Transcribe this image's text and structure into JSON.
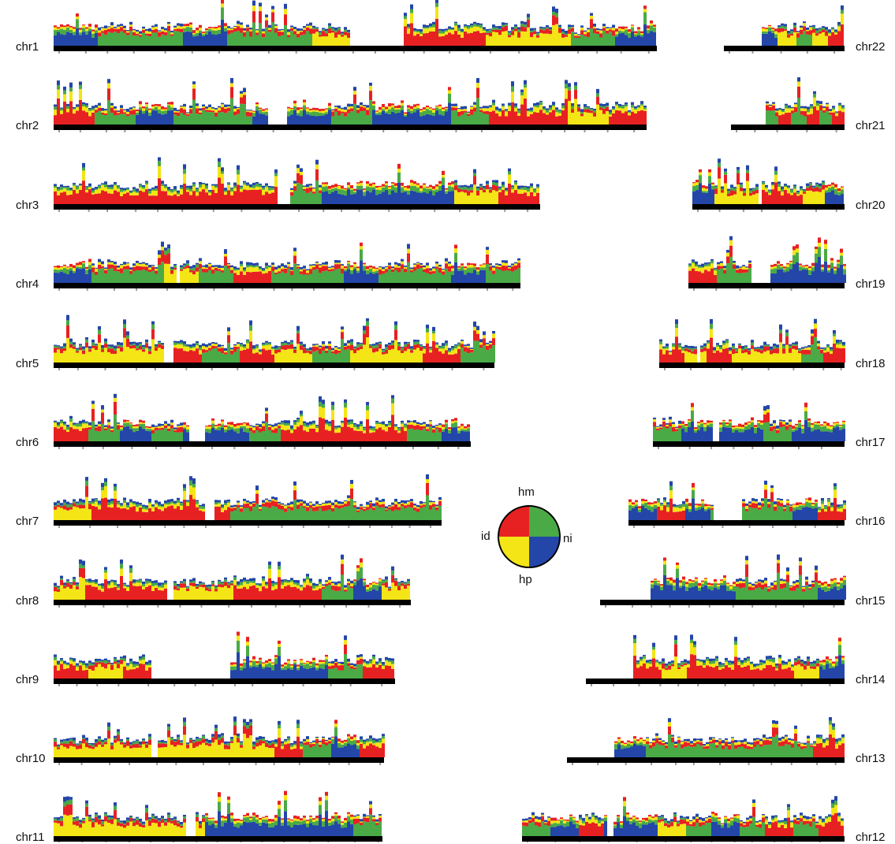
{
  "chromosomes_left": [
    {
      "label": "chr1",
      "centromere": [
        0.49,
        0.58
      ],
      "pattern": [
        "ni",
        "hm",
        "hm",
        "ni",
        "hm",
        "hm",
        "hp",
        "hm",
        "id",
        "id",
        "hp",
        "hp",
        "hm",
        "ni"
      ]
    },
    {
      "label": "chr2",
      "centromere": [
        0.36,
        0.39
      ],
      "pattern": [
        "id",
        "hm",
        "ni",
        "hm",
        "hm",
        "ni",
        "ni",
        "hm",
        "ni",
        "ni",
        "hm",
        "id",
        "id",
        "hp",
        "id"
      ]
    },
    {
      "label": "chr3",
      "centromere": [
        0.46,
        0.48
      ],
      "pattern": [
        "id",
        "id",
        "id",
        "id",
        "id",
        "hm",
        "ni",
        "ni",
        "ni",
        "hp",
        "id"
      ]
    },
    {
      "label": "chr4",
      "centromere": [
        0.26,
        0.27
      ],
      "pattern": [
        "ni",
        "hm",
        "hm",
        "hp",
        "hm",
        "id",
        "hm",
        "hm",
        "ni",
        "hm",
        "hm",
        "ni",
        "hm"
      ]
    },
    {
      "label": "chr5",
      "centromere": [
        0.25,
        0.27
      ],
      "pattern": [
        "hp",
        "hp",
        "hp",
        "id",
        "hm",
        "id",
        "hp",
        "hm",
        "hp",
        "hp",
        "id",
        "hm"
      ]
    },
    {
      "label": "chr6",
      "centromere": [
        0.32,
        0.36
      ],
      "pattern": [
        "id",
        "hm",
        "ni",
        "hm",
        "ni",
        "ni",
        "hm",
        "id",
        "id",
        "id",
        "id",
        "hm",
        "ni"
      ]
    },
    {
      "label": "chr7",
      "centromere": [
        0.39,
        0.41
      ],
      "pattern": [
        "hp",
        "id",
        "id",
        "id",
        "id",
        "hm",
        "hm",
        "hm",
        "hm",
        "hm",
        "hm"
      ]
    },
    {
      "label": "chr8",
      "centromere": [
        0.31,
        0.33
      ],
      "pattern": [
        "hp",
        "id",
        "id",
        "id",
        "hp",
        "hp",
        "id",
        "id",
        "id",
        "hm",
        "ni",
        "hp"
      ]
    },
    {
      "label": "chr9",
      "centromere": [
        0.28,
        0.51
      ],
      "pattern": [
        "id",
        "hp",
        "id",
        "hp",
        "ni",
        "ni",
        "ni",
        "ni",
        "hm",
        "id"
      ]
    },
    {
      "label": "chr10",
      "centromere": [
        0.29,
        0.31
      ],
      "pattern": [
        "hp",
        "hp",
        "hp",
        "hp",
        "hp",
        "hp",
        "hp",
        "hp",
        "id",
        "hm",
        "ni",
        "id"
      ]
    },
    {
      "label": "chr11",
      "centromere": [
        0.4,
        0.43
      ],
      "pattern": [
        "hp",
        "hp",
        "hp",
        "hp",
        "hp",
        "ni",
        "ni",
        "ni",
        "ni",
        "ni",
        "hm"
      ]
    }
  ],
  "chromosomes_right": [
    {
      "label": "chr22",
      "p_arm_empty_fraction": 0.3,
      "pattern": [
        "ni",
        "hp",
        "hm",
        "hp",
        "id"
      ]
    },
    {
      "label": "chr21",
      "p_arm_empty_fraction": 0.28,
      "pattern": [
        "hm",
        "id",
        "hm",
        "id",
        "hm",
        "id"
      ]
    },
    {
      "label": "chr20",
      "centromere": [
        0.42,
        0.45
      ],
      "pattern": [
        "ni",
        "hp",
        "hp",
        "id",
        "id",
        "hp",
        "ni"
      ]
    },
    {
      "label": "chr19",
      "centromere": [
        0.4,
        0.52
      ],
      "pattern": [
        "id",
        "hm",
        "hm",
        "ni",
        "ni",
        "ni"
      ]
    },
    {
      "label": "chr18",
      "centromere": [
        0.2,
        0.22
      ],
      "pattern": [
        "id",
        "hp",
        "id",
        "hp",
        "hp",
        "hp",
        "hm",
        "id"
      ]
    },
    {
      "label": "chr17",
      "centromere": [
        0.3,
        0.33
      ],
      "pattern": [
        "hm",
        "ni",
        "ni",
        "ni",
        "hm",
        "ni",
        "ni"
      ]
    },
    {
      "label": "chr16",
      "centromere": [
        0.38,
        0.52
      ],
      "pattern": [
        "ni",
        "id",
        "ni",
        "hm",
        "hm",
        "hm",
        "ni",
        "id"
      ]
    },
    {
      "label": "chr15",
      "p_arm_empty_fraction": 0.2,
      "pattern": [
        "ni",
        "ni",
        "ni",
        "hm",
        "hm",
        "hm",
        "ni"
      ]
    },
    {
      "label": "chr14",
      "p_arm_empty_fraction": 0.18,
      "pattern": [
        "id",
        "hp",
        "id",
        "id",
        "id",
        "id",
        "hp",
        "ni"
      ]
    },
    {
      "label": "chr13",
      "p_arm_empty_fraction": 0.16,
      "pattern": [
        "ni",
        "hm",
        "hm",
        "hm",
        "hm",
        "hm",
        "id"
      ]
    },
    {
      "label": "chr12",
      "centromere": [
        0.26,
        0.28
      ],
      "pattern": [
        "hm",
        "ni",
        "id",
        "ni",
        "ni",
        "hp",
        "hm",
        "ni",
        "hm",
        "id",
        "hm",
        "id"
      ]
    }
  ],
  "legend": {
    "hm": {
      "label": "hm",
      "color": "#4aaa46"
    },
    "ni": {
      "label": "ni",
      "color": "#2346a8"
    },
    "hp": {
      "label": "hp",
      "color": "#f4e516"
    },
    "id": {
      "label": "id",
      "color": "#e72122"
    }
  },
  "colors": {
    "chromosome_bar": "#000000",
    "tick_marks": "#9a9a9a"
  }
}
